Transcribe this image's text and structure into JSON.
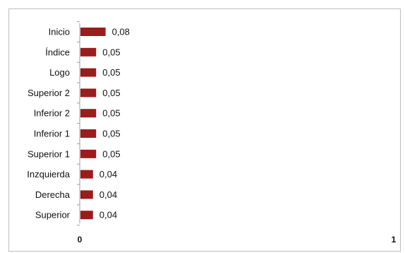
{
  "chart_data": {
    "type": "bar",
    "orientation": "horizontal",
    "categories": [
      "Inicio",
      "Índice",
      "Logo",
      "Superior 2",
      "Inferior 2",
      "Inferior 1",
      "Superior 1",
      "Inzquierda",
      "Derecha",
      "Superior"
    ],
    "values": [
      0.08,
      0.05,
      0.05,
      0.05,
      0.05,
      0.05,
      0.05,
      0.04,
      0.04,
      0.04
    ],
    "value_labels": [
      "0,08",
      "0,05",
      "0,05",
      "0,05",
      "0,05",
      "0,05",
      "0,05",
      "0,04",
      "0,04",
      "0,04"
    ],
    "xlim": [
      0,
      1
    ],
    "x_ticks": [
      0,
      1
    ],
    "x_tick_labels": [
      "0",
      "1"
    ],
    "title": "",
    "xlabel": "",
    "ylabel": "",
    "grid": false,
    "bar_color": "#9b1c1c",
    "axis_color": "#9e9e9e"
  }
}
